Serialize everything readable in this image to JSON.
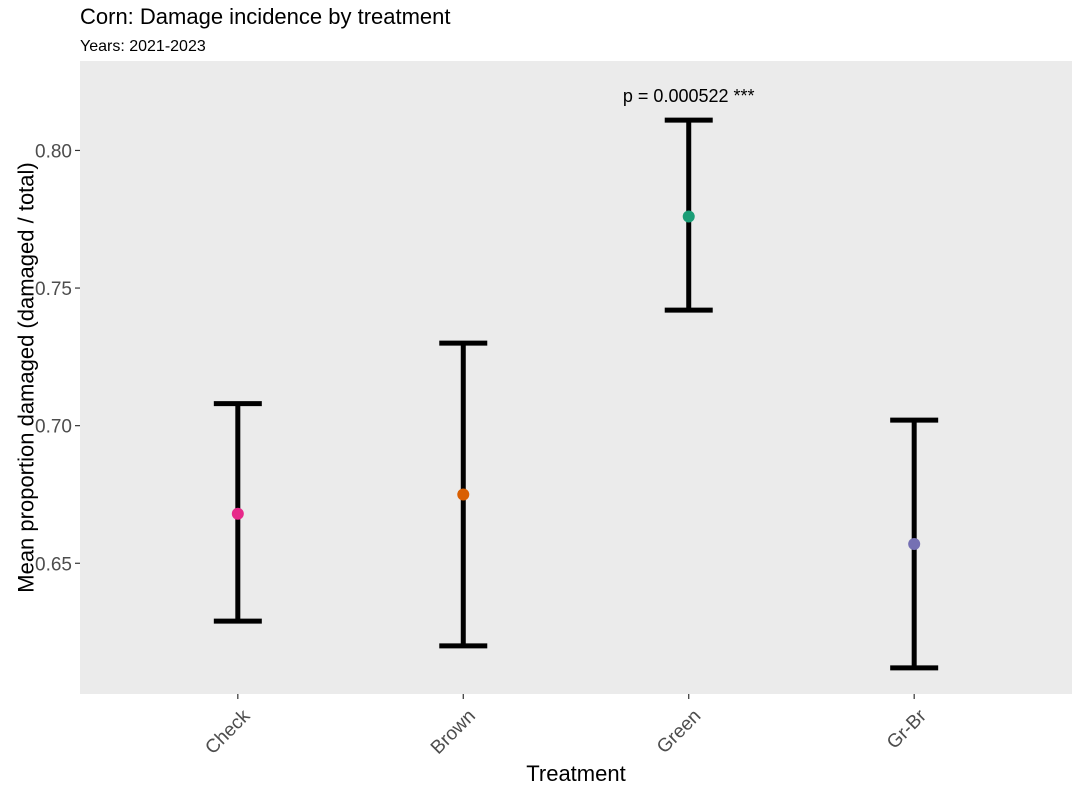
{
  "chart_data": {
    "type": "scatter",
    "title": "Corn: Damage incidence by treatment",
    "subtitle": "Years: 2021-2023",
    "xlabel": "Treatment",
    "ylabel": "Mean proportion damaged (damaged / total)",
    "categories": [
      "Check",
      "Brown",
      "Green",
      "Gr-Br"
    ],
    "means": [
      0.668,
      0.675,
      0.776,
      0.657
    ],
    "lower": [
      0.629,
      0.62,
      0.742,
      0.612
    ],
    "upper": [
      0.708,
      0.73,
      0.811,
      0.702
    ],
    "point_colors": [
      "#E7298A",
      "#D95F02",
      "#1B9E77",
      "#7570B3"
    ],
    "yticks": [
      0.65,
      0.7,
      0.75,
      0.8
    ],
    "ytick_labels": [
      "0.65",
      "0.70",
      "0.75",
      "0.80"
    ],
    "ylim": [
      0.6025,
      0.8325
    ],
    "annotations": [
      {
        "category": "Green",
        "text": "p = 0.000522 ***"
      }
    ],
    "grid": false,
    "panel_background": "#EBEBEB"
  }
}
